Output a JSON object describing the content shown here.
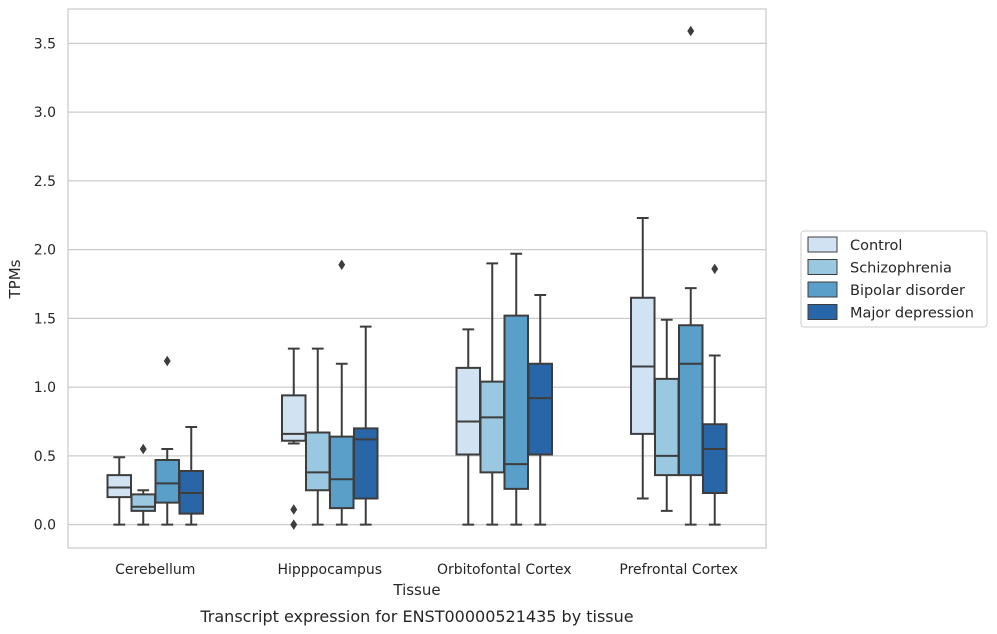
{
  "chart_data": {
    "type": "box",
    "caption": "Transcript expression for ENST00000521435 by tissue",
    "xlabel": "Tissue",
    "ylabel": "TPMs",
    "ylim": [
      -0.17,
      3.75
    ],
    "yticks": [
      0.0,
      0.5,
      1.0,
      1.5,
      2.0,
      2.5,
      3.0,
      3.5
    ],
    "ytick_labels": [
      "0.0",
      "0.5",
      "1.0",
      "1.5",
      "2.0",
      "2.5",
      "3.0",
      "3.5"
    ],
    "categories": [
      "Cerebellum",
      "Hipppocampus",
      "Orbitofontal Cortex",
      "Prefrontal Cortex"
    ],
    "grid": "horizontal",
    "legend_position": "right",
    "series": [
      {
        "name": "Control",
        "color": "#d1e2f2",
        "boxes": [
          {
            "whislo": 0.0,
            "q1": 0.2,
            "med": 0.27,
            "q3": 0.36,
            "whishi": 0.49,
            "fliers": []
          },
          {
            "whislo": 0.59,
            "q1": 0.61,
            "med": 0.66,
            "q3": 0.94,
            "whishi": 1.28,
            "fliers": [
              0.11,
              0.0
            ]
          },
          {
            "whislo": 0.0,
            "q1": 0.51,
            "med": 0.75,
            "q3": 1.14,
            "whishi": 1.42,
            "fliers": []
          },
          {
            "whislo": 0.19,
            "q1": 0.66,
            "med": 1.15,
            "q3": 1.65,
            "whishi": 2.23,
            "fliers": []
          }
        ]
      },
      {
        "name": "Schizophrenia",
        "color": "#9ac8e0",
        "boxes": [
          {
            "whislo": 0.0,
            "q1": 0.1,
            "med": 0.13,
            "q3": 0.22,
            "whishi": 0.25,
            "fliers": [
              0.55
            ]
          },
          {
            "whislo": 0.0,
            "q1": 0.25,
            "med": 0.38,
            "q3": 0.67,
            "whishi": 1.28,
            "fliers": []
          },
          {
            "whislo": 0.0,
            "q1": 0.38,
            "med": 0.78,
            "q3": 1.04,
            "whishi": 1.9,
            "fliers": []
          },
          {
            "whislo": 0.1,
            "q1": 0.36,
            "med": 0.5,
            "q3": 1.06,
            "whishi": 1.49,
            "fliers": []
          }
        ]
      },
      {
        "name": "Bipolar disorder",
        "color": "#5a9fca",
        "boxes": [
          {
            "whislo": 0.0,
            "q1": 0.16,
            "med": 0.3,
            "q3": 0.47,
            "whishi": 0.55,
            "fliers": [
              1.19
            ]
          },
          {
            "whislo": 0.0,
            "q1": 0.12,
            "med": 0.33,
            "q3": 0.64,
            "whishi": 1.17,
            "fliers": [
              1.89
            ]
          },
          {
            "whislo": 0.0,
            "q1": 0.26,
            "med": 0.44,
            "q3": 1.52,
            "whishi": 1.97,
            "fliers": []
          },
          {
            "whislo": 0.0,
            "q1": 0.36,
            "med": 1.17,
            "q3": 1.45,
            "whishi": 1.72,
            "fliers": [
              3.59
            ]
          }
        ]
      },
      {
        "name": "Major depression",
        "color": "#2966a8",
        "boxes": [
          {
            "whislo": 0.0,
            "q1": 0.08,
            "med": 0.23,
            "q3": 0.39,
            "whishi": 0.71,
            "fliers": []
          },
          {
            "whislo": 0.0,
            "q1": 0.19,
            "med": 0.62,
            "q3": 0.7,
            "whishi": 1.44,
            "fliers": []
          },
          {
            "whislo": 0.0,
            "q1": 0.51,
            "med": 0.92,
            "q3": 1.17,
            "whishi": 1.67,
            "fliers": []
          },
          {
            "whislo": 0.0,
            "q1": 0.23,
            "med": 0.55,
            "q3": 0.73,
            "whishi": 1.23,
            "fliers": [
              1.86
            ]
          }
        ]
      }
    ]
  }
}
